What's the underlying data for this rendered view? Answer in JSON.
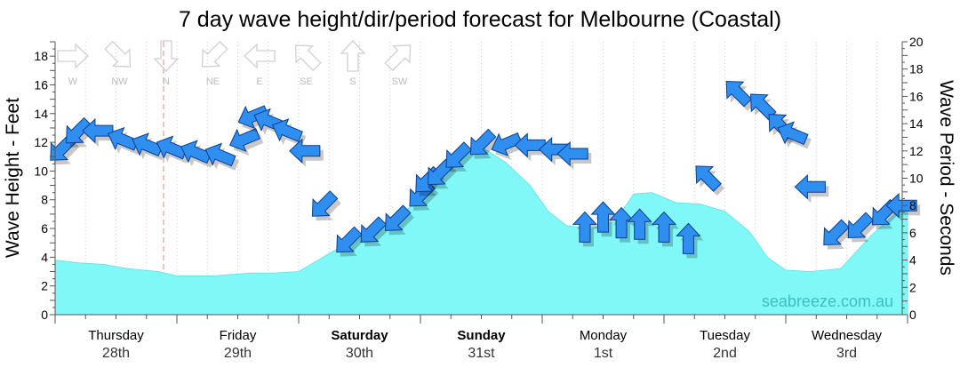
{
  "chart_data": {
    "type": "area",
    "title": "7 day wave height/dir/period forecast for Melbourne (Coastal)",
    "ylabel_left": "Wave Height - Feet",
    "ylabel_right": "Wave Period - Seconds",
    "ylim_left": [
      0,
      19
    ],
    "ylim_right": [
      0,
      20
    ],
    "yticks_left": [
      0,
      2,
      4,
      6,
      8,
      10,
      12,
      14,
      16,
      18
    ],
    "yticks_right": [
      0,
      2,
      4,
      6,
      8,
      10,
      12,
      14,
      16,
      18,
      20
    ],
    "days": [
      {
        "day": "Thursday",
        "date": "28th",
        "bold": false
      },
      {
        "day": "Friday",
        "date": "29th",
        "bold": false
      },
      {
        "day": "Saturday",
        "date": "30th",
        "bold": true
      },
      {
        "day": "Sunday",
        "date": "31st",
        "bold": true
      },
      {
        "day": "Monday",
        "date": "1st",
        "bold": false
      },
      {
        "day": "Tuesday",
        "date": "2nd",
        "bold": false
      },
      {
        "day": "Wednesday",
        "date": "3rd",
        "bold": false
      }
    ],
    "direction_legend": [
      "W",
      "NW",
      "N",
      "NE",
      "E",
      "SE",
      "S",
      "SW"
    ],
    "wave_height_series": {
      "name": "Wave Height",
      "color": "#80f8f8",
      "x_day": [
        0,
        0.2,
        0.4,
        0.6,
        0.85,
        1.0,
        1.3,
        1.6,
        1.8,
        2.0,
        2.2,
        2.4,
        2.6,
        2.8,
        3.0,
        3.2,
        3.35,
        3.5,
        3.7,
        3.9,
        4.05,
        4.2,
        4.4,
        4.6,
        4.75,
        4.9,
        5.1,
        5.3,
        5.5,
        5.7,
        5.85,
        6.0,
        6.2,
        6.45,
        6.7,
        7.0
      ],
      "feet": [
        3.8,
        3.6,
        3.5,
        3.2,
        3.0,
        2.7,
        2.7,
        2.9,
        2.9,
        3.0,
        4.0,
        5.0,
        5.8,
        6.8,
        8.0,
        9.8,
        11.5,
        11.7,
        10.6,
        9.0,
        7.2,
        6.2,
        6.0,
        6.5,
        8.4,
        8.5,
        7.8,
        7.7,
        7.2,
        5.8,
        4.0,
        3.1,
        3.0,
        3.2,
        5.5,
        7.8
      ]
    },
    "swell_arrows": {
      "color": "#2f8ff0",
      "x_day": [
        0.05,
        0.18,
        0.35,
        0.55,
        0.75,
        0.95,
        1.15,
        1.35,
        1.55,
        1.62,
        1.75,
        1.9,
        2.05,
        2.2,
        2.4,
        2.6,
        2.8,
        3.0,
        3.05,
        3.15,
        3.3,
        3.5,
        3.7,
        3.9,
        4.1,
        4.25,
        4.35,
        4.5,
        4.65,
        4.8,
        5.0,
        5.2,
        5.35,
        5.6,
        5.8,
        5.95,
        6.05,
        6.2,
        6.4,
        6.6,
        6.8,
        6.95
      ],
      "height_ft": [
        11.5,
        12.7,
        12.8,
        12.2,
        11.8,
        11.6,
        11.3,
        11.1,
        12.2,
        13.8,
        13.5,
        12.8,
        11.4,
        7.6,
        5.1,
        5.8,
        6.6,
        8.3,
        9.3,
        9.8,
        11.0,
        11.9,
        11.9,
        11.8,
        11.5,
        11.2,
        6.1,
        6.8,
        6.4,
        6.3,
        6.1,
        5.3,
        9.6,
        15.5,
        14.6,
        13.2,
        12.6,
        8.9,
        5.6,
        6.1,
        7.0,
        7.6
      ],
      "direction": [
        "NE",
        "NE",
        "E",
        "ESE",
        "ESE",
        "ESE",
        "ESE",
        "ESE",
        "ENE",
        "ENE",
        "ESE",
        "ESE",
        "E",
        "NE",
        "NE",
        "NE",
        "NE",
        "NE",
        "NE",
        "NE",
        "NE",
        "NE",
        "ENE",
        "E",
        "E",
        "E",
        "S",
        "S",
        "S",
        "S",
        "S",
        "S",
        "SE",
        "SE",
        "SE",
        "SE",
        "ESE",
        "E",
        "NE",
        "NE",
        "NE",
        "E"
      ]
    },
    "watermark": "seabreeze.com.au"
  }
}
